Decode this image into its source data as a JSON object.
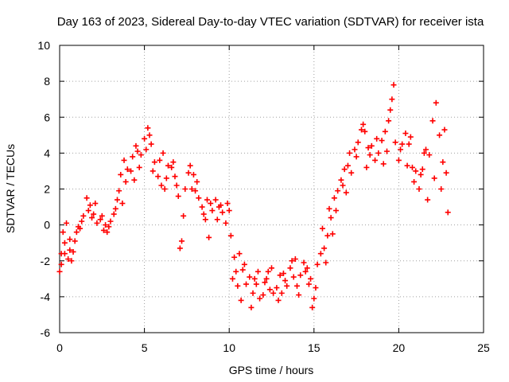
{
  "chart_data": {
    "type": "scatter",
    "title": "Day 163 of 2023, Sidereal Day-to-day VTEC variation (SDTVAR) for receiver ista",
    "xlabel": "GPS time / hours",
    "ylabel": "SDTVAR / TECUs",
    "xlim": [
      0,
      25
    ],
    "ylim": [
      -6,
      10
    ],
    "xticks": [
      0,
      5,
      10,
      15,
      20,
      25
    ],
    "yticks": [
      -6,
      -4,
      -2,
      0,
      2,
      4,
      6,
      8,
      10
    ],
    "grid": true,
    "marker": "plus",
    "color": "#ff0000",
    "series": [
      {
        "name": "SDTVAR",
        "points": [
          [
            0.0,
            -2.6
          ],
          [
            0.1,
            -1.6
          ],
          [
            0.2,
            -0.4
          ],
          [
            0.3,
            -1.6
          ],
          [
            0.4,
            0.1
          ],
          [
            0.5,
            -1.9
          ],
          [
            0.6,
            -0.8
          ],
          [
            0.8,
            -1.5
          ],
          [
            1.0,
            -0.4
          ],
          [
            1.2,
            -0.2
          ],
          [
            1.4,
            0.5
          ],
          [
            1.6,
            1.5
          ],
          [
            1.8,
            1.1
          ],
          [
            2.0,
            0.6
          ],
          [
            2.2,
            0.1
          ],
          [
            2.4,
            0.3
          ],
          [
            2.6,
            -0.3
          ],
          [
            2.8,
            -0.4
          ],
          [
            3.0,
            0.2
          ],
          [
            3.2,
            0.6
          ],
          [
            3.4,
            1.4
          ],
          [
            3.6,
            2.8
          ],
          [
            3.8,
            3.6
          ],
          [
            4.0,
            3.1
          ],
          [
            4.2,
            3.0
          ],
          [
            4.4,
            2.5
          ],
          [
            4.6,
            4.1
          ],
          [
            4.8,
            3.9
          ],
          [
            5.0,
            4.8
          ],
          [
            5.2,
            5.4
          ],
          [
            5.4,
            4.5
          ],
          [
            5.6,
            3.5
          ],
          [
            5.8,
            2.7
          ],
          [
            6.0,
            2.2
          ],
          [
            6.2,
            2.0
          ],
          [
            6.4,
            3.3
          ],
          [
            6.6,
            3.2
          ],
          [
            6.8,
            2.7
          ],
          [
            7.0,
            1.6
          ],
          [
            7.2,
            -0.9
          ],
          [
            7.4,
            2.0
          ],
          [
            7.6,
            2.9
          ],
          [
            7.8,
            2.0
          ],
          [
            8.0,
            1.9
          ],
          [
            8.2,
            1.5
          ],
          [
            8.4,
            1.0
          ],
          [
            8.6,
            0.3
          ],
          [
            8.8,
            -0.7
          ],
          [
            9.0,
            0.8
          ],
          [
            9.2,
            1.4
          ],
          [
            9.4,
            1.0
          ],
          [
            9.6,
            0.7
          ],
          [
            9.8,
            0.1
          ],
          [
            10.0,
            0.8
          ],
          [
            10.2,
            -3.0
          ],
          [
            10.4,
            -2.6
          ],
          [
            10.6,
            -1.6
          ],
          [
            10.8,
            -2.5
          ],
          [
            11.0,
            -3.3
          ],
          [
            11.2,
            -2.9
          ],
          [
            11.4,
            -3.8
          ],
          [
            11.6,
            -3.3
          ],
          [
            11.8,
            -4.1
          ],
          [
            12.0,
            -3.9
          ],
          [
            12.2,
            -3.0
          ],
          [
            12.4,
            -3.6
          ],
          [
            12.6,
            -3.8
          ],
          [
            12.8,
            -3.5
          ],
          [
            13.0,
            -2.8
          ],
          [
            13.2,
            -2.7
          ],
          [
            13.4,
            -3.4
          ],
          [
            13.6,
            -2.4
          ],
          [
            13.8,
            -2.9
          ],
          [
            14.0,
            -3.4
          ],
          [
            14.2,
            -2.8
          ],
          [
            14.4,
            -2.1
          ],
          [
            14.6,
            -2.4
          ],
          [
            14.8,
            -3.0
          ],
          [
            15.0,
            -4.1
          ],
          [
            15.2,
            -2.2
          ],
          [
            15.4,
            -1.6
          ],
          [
            15.6,
            -1.3
          ],
          [
            15.8,
            -0.6
          ],
          [
            16.0,
            0.4
          ],
          [
            16.2,
            1.5
          ],
          [
            16.4,
            1.9
          ],
          [
            16.6,
            2.5
          ],
          [
            16.8,
            3.1
          ],
          [
            17.0,
            3.3
          ],
          [
            17.2,
            2.9
          ],
          [
            17.4,
            4.2
          ],
          [
            17.6,
            4.6
          ],
          [
            17.8,
            5.3
          ],
          [
            18.0,
            5.2
          ],
          [
            18.2,
            4.3
          ],
          [
            18.4,
            4.4
          ],
          [
            18.6,
            3.6
          ],
          [
            18.8,
            4.0
          ],
          [
            19.0,
            4.7
          ],
          [
            19.2,
            5.2
          ],
          [
            19.4,
            5.8
          ],
          [
            19.6,
            7.0
          ],
          [
            19.8,
            4.6
          ],
          [
            20.0,
            3.6
          ],
          [
            20.2,
            4.5
          ],
          [
            20.4,
            5.1
          ],
          [
            20.6,
            4.5
          ],
          [
            20.8,
            3.2
          ],
          [
            21.0,
            3.0
          ],
          [
            21.2,
            2.0
          ],
          [
            21.4,
            3.1
          ],
          [
            21.6,
            4.2
          ],
          [
            21.8,
            3.9
          ],
          [
            22.0,
            5.8
          ],
          [
            22.2,
            6.8
          ],
          [
            22.4,
            5.0
          ],
          [
            22.6,
            3.5
          ],
          [
            22.8,
            2.9
          ],
          [
            0.1,
            -2.2
          ],
          [
            0.3,
            -1.0
          ],
          [
            0.6,
            -1.4
          ],
          [
            0.9,
            -0.9
          ],
          [
            1.3,
            0.2
          ],
          [
            1.7,
            0.8
          ],
          [
            2.1,
            1.2
          ],
          [
            2.5,
            0.5
          ],
          [
            2.9,
            -0.1
          ],
          [
            3.3,
            0.9
          ],
          [
            3.5,
            1.9
          ],
          [
            3.9,
            2.4
          ],
          [
            4.3,
            3.8
          ],
          [
            4.7,
            3.2
          ],
          [
            5.1,
            4.2
          ],
          [
            5.5,
            3.0
          ],
          [
            5.9,
            3.6
          ],
          [
            6.3,
            2.6
          ],
          [
            6.7,
            3.5
          ],
          [
            7.1,
            -1.3
          ],
          [
            7.3,
            0.5
          ],
          [
            7.7,
            3.3
          ],
          [
            8.1,
            2.4
          ],
          [
            8.5,
            0.6
          ],
          [
            8.9,
            1.2
          ],
          [
            9.3,
            0.3
          ],
          [
            9.9,
            1.2
          ],
          [
            10.3,
            -1.8
          ],
          [
            10.5,
            -3.4
          ],
          [
            10.9,
            -2.2
          ],
          [
            11.3,
            -4.6
          ],
          [
            11.7,
            -2.6
          ],
          [
            12.1,
            -3.2
          ],
          [
            12.5,
            -2.4
          ],
          [
            12.9,
            -4.2
          ],
          [
            13.3,
            -3.1
          ],
          [
            13.7,
            -2.0
          ],
          [
            14.1,
            -3.9
          ],
          [
            14.5,
            -2.6
          ],
          [
            14.9,
            -4.6
          ],
          [
            15.1,
            -3.5
          ],
          [
            15.5,
            -0.2
          ],
          [
            15.9,
            0.9
          ],
          [
            16.3,
            0.8
          ],
          [
            16.7,
            2.2
          ],
          [
            17.1,
            4.0
          ],
          [
            17.5,
            3.8
          ],
          [
            17.9,
            5.6
          ],
          [
            18.3,
            3.9
          ],
          [
            18.7,
            4.8
          ],
          [
            19.1,
            3.4
          ],
          [
            19.5,
            6.4
          ],
          [
            19.7,
            7.8
          ],
          [
            20.1,
            4.2
          ],
          [
            20.5,
            3.3
          ],
          [
            20.9,
            2.4
          ],
          [
            21.3,
            2.8
          ],
          [
            21.7,
            1.4
          ],
          [
            22.1,
            2.6
          ],
          [
            22.5,
            2.0
          ],
          [
            22.9,
            0.7
          ],
          [
            22.7,
            5.3
          ],
          [
            21.5,
            4.0
          ],
          [
            20.7,
            4.9
          ],
          [
            19.3,
            4.1
          ],
          [
            18.1,
            3.2
          ],
          [
            16.9,
            1.8
          ],
          [
            16.1,
            -0.5
          ],
          [
            15.7,
            -2.1
          ],
          [
            14.7,
            -3.3
          ],
          [
            13.9,
            -1.9
          ],
          [
            13.1,
            -3.8
          ],
          [
            12.3,
            -2.6
          ],
          [
            11.5,
            -3.0
          ],
          [
            10.7,
            -4.2
          ],
          [
            10.1,
            -0.6
          ],
          [
            9.5,
            1.1
          ],
          [
            8.7,
            1.4
          ],
          [
            7.9,
            2.8
          ],
          [
            6.9,
            2.2
          ],
          [
            6.1,
            4.0
          ],
          [
            5.3,
            5.0
          ],
          [
            4.5,
            4.4
          ],
          [
            3.7,
            1.2
          ],
          [
            2.7,
            0.0
          ],
          [
            1.9,
            0.4
          ],
          [
            1.1,
            -0.1
          ],
          [
            0.7,
            -2.0
          ]
        ]
      }
    ]
  }
}
